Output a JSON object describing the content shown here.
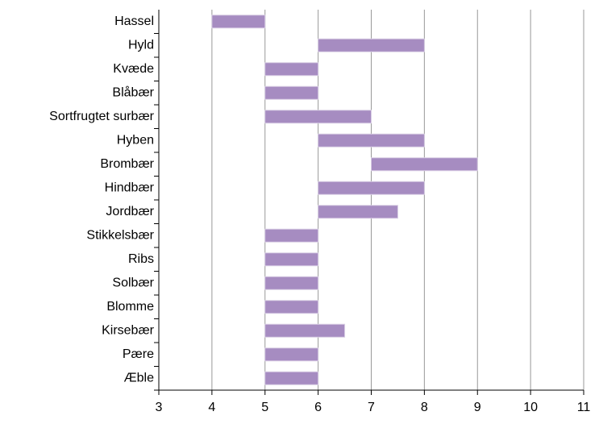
{
  "chart_data": {
    "type": "range-bar",
    "categories": [
      "Hassel",
      "Hyld",
      "Kvæde",
      "Blåbær",
      "Sortfrugtet surbær",
      "Hyben",
      "Brombær",
      "Hindbær",
      "Jordbær",
      "Stikkelsbær",
      "Ribs",
      "Solbær",
      "Blomme",
      "Kirsebær",
      "Pære",
      "Æble"
    ],
    "values": [
      [
        4,
        5
      ],
      [
        6,
        8
      ],
      [
        5,
        6
      ],
      [
        5,
        6
      ],
      [
        5,
        7
      ],
      [
        6,
        8
      ],
      [
        7,
        9
      ],
      [
        6,
        8
      ],
      [
        6,
        7.5
      ],
      [
        5,
        6
      ],
      [
        5,
        6
      ],
      [
        5,
        6
      ],
      [
        5,
        6
      ],
      [
        5,
        6.5
      ],
      [
        5,
        6
      ],
      [
        5,
        6
      ]
    ],
    "color": "#a68cc1",
    "xlim": [
      3,
      11
    ],
    "xticks": [
      3,
      4,
      5,
      6,
      7,
      8,
      9,
      10,
      11
    ],
    "grid": true
  }
}
